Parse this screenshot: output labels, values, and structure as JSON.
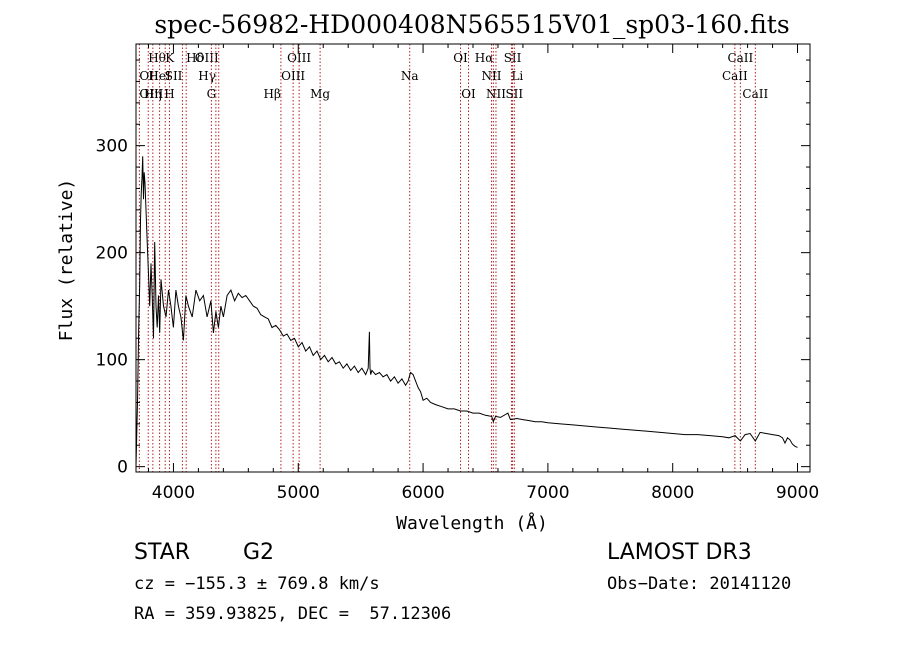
{
  "chart_data": {
    "type": "line",
    "title": "spec-56982-HD000408N565515V01_sp03-160.fits",
    "xlabel": "Wavelength (Å)",
    "ylabel": "Flux (relative)",
    "xlim": [
      3700,
      9100
    ],
    "ylim": [
      -5,
      395
    ],
    "xticks": [
      {
        "value": 4000,
        "label": "4000"
      },
      {
        "value": 5000,
        "label": "5000"
      },
      {
        "value": 6000,
        "label": "6000"
      },
      {
        "value": 7000,
        "label": "7000"
      },
      {
        "value": 8000,
        "label": "8000"
      },
      {
        "value": 9000,
        "label": "9000"
      }
    ],
    "yticks": [
      {
        "value": 0,
        "label": "0"
      },
      {
        "value": 100,
        "label": "100"
      },
      {
        "value": 200,
        "label": "200"
      },
      {
        "value": 300,
        "label": "300"
      }
    ],
    "x_minor_step": 200,
    "y_minor_step": 20,
    "line_color": "#000000",
    "marker_color": "#b22222",
    "series": [
      {
        "name": "flux",
        "x": [
          3700,
          3712,
          3722,
          3730,
          3736,
          3742,
          3748,
          3754,
          3760,
          3766,
          3772,
          3780,
          3790,
          3800,
          3810,
          3820,
          3830,
          3840,
          3850,
          3860,
          3870,
          3880,
          3890,
          3900,
          3920,
          3940,
          3960,
          3980,
          4000,
          4020,
          4040,
          4060,
          4080,
          4100,
          4120,
          4150,
          4180,
          4210,
          4240,
          4270,
          4300,
          4320,
          4340,
          4360,
          4380,
          4400,
          4430,
          4460,
          4490,
          4520,
          4550,
          4580,
          4610,
          4640,
          4670,
          4700,
          4730,
          4760,
          4790,
          4820,
          4850,
          4880,
          4910,
          4940,
          4970,
          5000,
          5030,
          5060,
          5090,
          5120,
          5150,
          5180,
          5210,
          5240,
          5270,
          5300,
          5330,
          5360,
          5390,
          5420,
          5450,
          5480,
          5510,
          5540,
          5560,
          5570,
          5575,
          5580,
          5590,
          5620,
          5650,
          5680,
          5710,
          5740,
          5770,
          5800,
          5830,
          5860,
          5880,
          5890,
          5900,
          5920,
          5940,
          5960,
          5980,
          6000,
          6030,
          6060,
          6100,
          6150,
          6200,
          6250,
          6300,
          6350,
          6400,
          6450,
          6500,
          6550,
          6563,
          6580,
          6620,
          6680,
          6700,
          6750,
          6800,
          6850,
          6900,
          6950,
          7000,
          7100,
          7200,
          7300,
          7400,
          7500,
          7600,
          7700,
          7800,
          7900,
          8000,
          8100,
          8200,
          8300,
          8400,
          8450,
          8500,
          8542,
          8580,
          8620,
          8662,
          8700,
          8750,
          8800,
          8850,
          8880,
          8900,
          8920,
          8940,
          8960,
          8980,
          9000
        ],
        "y": [
          0,
          60,
          130,
          170,
          230,
          255,
          270,
          290,
          250,
          275,
          265,
          240,
          210,
          180,
          150,
          190,
          160,
          120,
          210,
          150,
          130,
          160,
          125,
          175,
          150,
          140,
          165,
          150,
          130,
          165,
          150,
          140,
          118,
          160,
          150,
          140,
          165,
          155,
          160,
          140,
          155,
          125,
          145,
          130,
          150,
          140,
          160,
          165,
          155,
          162,
          158,
          160,
          155,
          150,
          148,
          142,
          140,
          138,
          130,
          132,
          128,
          122,
          124,
          118,
          120,
          112,
          116,
          108,
          112,
          104,
          108,
          100,
          104,
          98,
          102,
          96,
          98,
          92,
          96,
          90,
          94,
          88,
          92,
          86,
          92,
          126,
          92,
          86,
          90,
          86,
          88,
          84,
          86,
          80,
          84,
          78,
          82,
          76,
          80,
          84,
          88,
          86,
          80,
          74,
          70,
          62,
          64,
          60,
          58,
          56,
          54,
          54,
          52,
          52,
          50,
          50,
          48,
          47,
          42,
          47,
          46,
          50,
          44,
          45,
          44,
          43,
          42,
          42,
          41,
          40,
          39,
          38,
          37,
          36,
          35,
          34,
          33,
          32,
          31,
          30,
          30,
          29,
          28,
          27,
          29,
          24,
          30,
          31,
          24,
          32,
          31,
          30,
          29,
          27,
          22,
          27,
          25,
          21,
          19,
          18
        ]
      }
    ],
    "line_markers": [
      {
        "label": "Hθ",
        "wave": 3798,
        "row": 0,
        "anchor": "left"
      },
      {
        "label": "K",
        "wave": 3934,
        "row": 0,
        "anchor": "left"
      },
      {
        "label": "Hδ",
        "wave": 4102,
        "row": 0,
        "anchor": "left"
      },
      {
        "label": "OIII",
        "wave": 4363,
        "row": 0,
        "anchor": "right"
      },
      {
        "label": "OIII",
        "wave": 5007,
        "row": 0,
        "anchor": "center"
      },
      {
        "label": "OI",
        "wave": 6300,
        "row": 0,
        "anchor": "center"
      },
      {
        "label": "Hα",
        "wave": 6563,
        "row": 0,
        "anchor": "right"
      },
      {
        "label": "SII",
        "wave": 6717,
        "row": 0,
        "anchor": "center"
      },
      {
        "label": "CaII",
        "wave": 8542,
        "row": 0,
        "anchor": "center"
      },
      {
        "label": "OII",
        "wave": 3727,
        "row": 1,
        "anchor": "left"
      },
      {
        "label": "HeI",
        "wave": 3889,
        "row": 1,
        "anchor": "center"
      },
      {
        "label": "SII",
        "wave": 4072,
        "row": 1,
        "anchor": "right"
      },
      {
        "label": "Hγ",
        "wave": 4340,
        "row": 1,
        "anchor": "right"
      },
      {
        "label": "OIII",
        "wave": 4959,
        "row": 1,
        "anchor": "center"
      },
      {
        "label": "Na",
        "wave": 5893,
        "row": 1,
        "anchor": "center"
      },
      {
        "label": "NII",
        "wave": 6548,
        "row": 1,
        "anchor": "center"
      },
      {
        "label": "Li",
        "wave": 6708,
        "row": 1,
        "anchor": "left"
      },
      {
        "label": "CaII",
        "wave": 8498,
        "row": 1,
        "anchor": "center"
      },
      {
        "label": "OIII",
        "wave": 3727,
        "row": 2,
        "anchor": "left"
      },
      {
        "label": "Hη",
        "wave": 3835,
        "row": 2,
        "anchor": "center"
      },
      {
        "label": "H",
        "wave": 3968,
        "row": 2,
        "anchor": "center"
      },
      {
        "label": "G",
        "wave": 4304,
        "row": 2,
        "anchor": "center"
      },
      {
        "label": "Hβ",
        "wave": 4861,
        "row": 2,
        "anchor": "right"
      },
      {
        "label": "Mg",
        "wave": 5175,
        "row": 2,
        "anchor": "center"
      },
      {
        "label": "OI",
        "wave": 6364,
        "row": 2,
        "anchor": "center"
      },
      {
        "label": "NII",
        "wave": 6584,
        "row": 2,
        "anchor": "center"
      },
      {
        "label": "SII",
        "wave": 6731,
        "row": 2,
        "anchor": "center"
      },
      {
        "label": "CaII",
        "wave": 8662,
        "row": 2,
        "anchor": "center"
      }
    ]
  },
  "info": {
    "object_class": "STAR",
    "subclass": "G2",
    "survey": "LAMOST DR3",
    "redshift": "cz = −155.3 ± 769.8 km/s",
    "obs_date": "Obs−Date: 20141120",
    "coords": "RA = 359.93825, DEC =  57.12306"
  }
}
